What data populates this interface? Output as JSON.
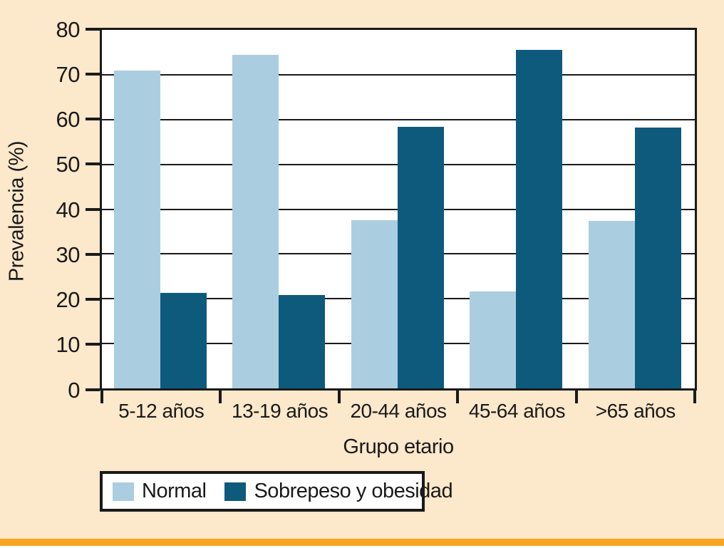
{
  "chart_data": {
    "type": "bar",
    "title": "",
    "xlabel": "Grupo etario",
    "ylabel": "Prevalencia (%)",
    "categories": [
      "5-12 años",
      "13-19 años",
      "20-44 años",
      "45-64 años",
      ">65 años"
    ],
    "series": [
      {
        "name": "Normal",
        "color": "#abcde0",
        "values": [
          71.0,
          74.4,
          37.6,
          21.7,
          37.4
        ]
      },
      {
        "name": "Sobrepeso y obesidad",
        "color": "#0d5a7d",
        "values": [
          21.3,
          20.9,
          58.3,
          75.5,
          58.2
        ]
      }
    ],
    "ylim": [
      0,
      80
    ],
    "ytick_step": 10,
    "yticks": [
      "0",
      "10",
      "20",
      "30",
      "40",
      "50",
      "60",
      "70",
      "80"
    ],
    "grid": "horizontal",
    "legend_position": "bottom-left"
  },
  "colors": {
    "background": "#fce8cb",
    "plot_background": "#ffffff",
    "line": "#1a1a1a",
    "accent_bar": "#f7a61f"
  }
}
